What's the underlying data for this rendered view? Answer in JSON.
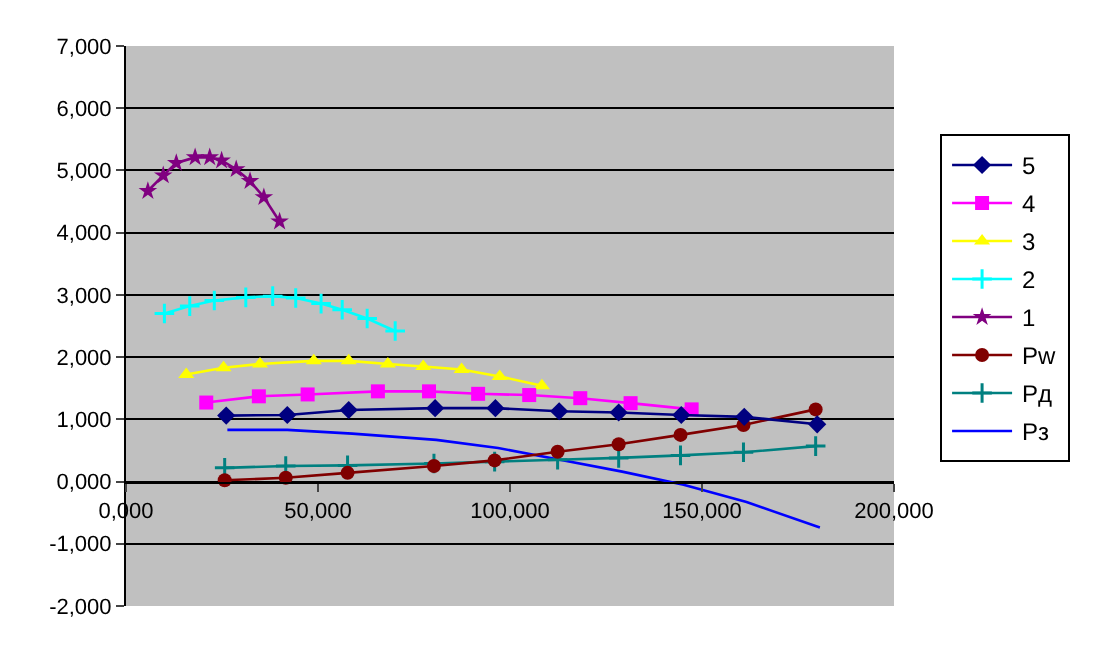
{
  "chart_data": {
    "type": "line",
    "xlim": [
      0,
      200
    ],
    "ylim": [
      -2,
      7
    ],
    "xticks": [
      {
        "value": 0,
        "label": "0,000"
      },
      {
        "value": 50,
        "label": "50,000"
      },
      {
        "value": 100,
        "label": "100,000"
      },
      {
        "value": 150,
        "label": "150,000"
      },
      {
        "value": 200,
        "label": "200,000"
      }
    ],
    "yticks": [
      {
        "value": -2,
        "label": "-2,000"
      },
      {
        "value": -1,
        "label": "-1,000"
      },
      {
        "value": 0,
        "label": "0,000"
      },
      {
        "value": 1,
        "label": "1,000"
      },
      {
        "value": 2,
        "label": "2,000"
      },
      {
        "value": 3,
        "label": "3,000"
      },
      {
        "value": 4,
        "label": "4,000"
      },
      {
        "value": 5,
        "label": "5,000"
      },
      {
        "value": 6,
        "label": "6,000"
      },
      {
        "value": 7,
        "label": "7,000"
      }
    ],
    "grid": "y",
    "legend": "right",
    "series": [
      {
        "name": "5",
        "color": "#000080",
        "marker": "diamond",
        "x": [
          26.1,
          42,
          58,
          80.5,
          96.2,
          112.8,
          128.3,
          144.6,
          161,
          180
        ],
        "values": [
          1.06,
          1.07,
          1.15,
          1.18,
          1.18,
          1.13,
          1.11,
          1.07,
          1.04,
          0.92
        ]
      },
      {
        "name": "4",
        "color": "#ff00ff",
        "marker": "square",
        "x": [
          20.9,
          34.6,
          47.3,
          65.6,
          78.9,
          91.7,
          105,
          118.3,
          131.4,
          147.3
        ],
        "values": [
          1.27,
          1.37,
          1.4,
          1.45,
          1.45,
          1.41,
          1.39,
          1.34,
          1.26,
          1.16
        ]
      },
      {
        "name": "3",
        "color": "#ffff00",
        "marker": "triangle",
        "x": [
          15.7,
          25.4,
          34.9,
          48.9,
          58,
          68.2,
          77.4,
          87.4,
          97.3,
          108.3
        ],
        "values": [
          1.72,
          1.83,
          1.89,
          1.94,
          1.94,
          1.89,
          1.85,
          1.8,
          1.69,
          1.54
        ]
      },
      {
        "name": "2",
        "color": "#00ffff",
        "marker": "cross",
        "x": [
          10,
          16.6,
          23,
          31.2,
          38.2,
          44.2,
          50.8,
          56.3,
          62.8,
          70.1
        ],
        "values": [
          2.7,
          2.82,
          2.91,
          2.96,
          2.98,
          2.95,
          2.86,
          2.76,
          2.62,
          2.42
        ]
      },
      {
        "name": "1",
        "color": "#800080",
        "marker": "star",
        "x": [
          5.7,
          9.7,
          13.1,
          18,
          21.8,
          24.9,
          28.7,
          32.3,
          35.9,
          40
        ],
        "values": [
          4.67,
          4.92,
          5.12,
          5.21,
          5.21,
          5.16,
          5.02,
          4.83,
          4.57,
          4.18
        ]
      },
      {
        "name": "Pw",
        "color": "#800000",
        "marker": "circle",
        "x": [
          25.7,
          41.6,
          57.7,
          80.2,
          96,
          112.4,
          128.3,
          144.4,
          160.8,
          179.6
        ],
        "values": [
          0.02,
          0.06,
          0.14,
          0.25,
          0.34,
          0.48,
          0.6,
          0.75,
          0.91,
          1.16
        ]
      },
      {
        "name": "Pд",
        "color": "#008080",
        "marker": "cross",
        "x": [
          25.7,
          41.6,
          57.7,
          80.2,
          96,
          112.4,
          128.3,
          144.4,
          160.8,
          179.6
        ],
        "values": [
          0.22,
          0.25,
          0.26,
          0.29,
          0.32,
          0.35,
          0.38,
          0.42,
          0.47,
          0.57
        ]
      },
      {
        "name": "Pз",
        "color": "#0000ff",
        "marker": "none",
        "x": [
          26.4,
          42,
          58.9,
          80.8,
          96.9,
          113,
          129.2,
          145.2,
          161.6,
          180.7
        ],
        "values": [
          0.83,
          0.83,
          0.77,
          0.67,
          0.54,
          0.35,
          0.16,
          -0.05,
          -0.33,
          -0.74
        ]
      }
    ]
  }
}
